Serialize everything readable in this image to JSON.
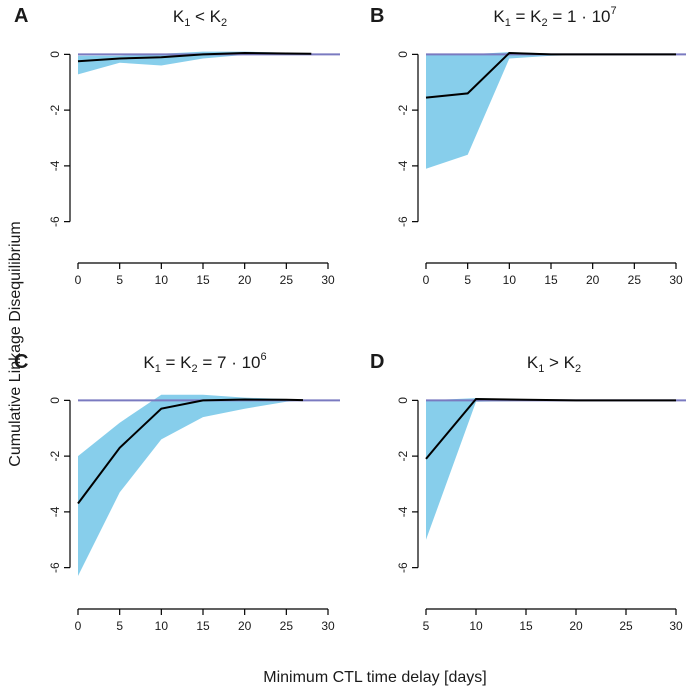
{
  "figure": {
    "ylabel": "Cumulative Linkage Disequilibrium",
    "xlabel": "Minimum CTL time delay [days]"
  },
  "colors": {
    "band": "#87ceeb",
    "zero_line": "#7a7ac0",
    "mean_line": "#000000"
  },
  "chart_data": [
    {
      "type": "area",
      "panel": "A",
      "title": {
        "pre": "K",
        "s1": "1",
        "mid": " < K",
        "s2": "2",
        "post": "",
        "sup": ""
      },
      "ylim": [
        -6.3,
        0.3
      ],
      "yticks": [
        0,
        -2,
        -4,
        -6
      ],
      "xlim": [
        0,
        30
      ],
      "xticks": [
        0,
        5,
        10,
        15,
        20,
        25,
        30
      ],
      "x": [
        0,
        5,
        10,
        15,
        20,
        25,
        28
      ],
      "mean": [
        -0.25,
        -0.15,
        -0.1,
        0.0,
        0.05,
        0.03,
        0.02
      ],
      "lower": [
        -0.72,
        -0.3,
        -0.4,
        -0.15,
        -0.02,
        -0.01,
        0.0
      ],
      "upper": [
        -0.05,
        -0.05,
        0.02,
        0.1,
        0.1,
        0.06,
        0.03
      ]
    },
    {
      "type": "area",
      "panel": "B",
      "title": {
        "pre": "K",
        "s1": "1",
        "mid": " = K",
        "s2": "2",
        "post": " = 1 · 10",
        "sup": "7"
      },
      "ylim": [
        -6.3,
        0.3
      ],
      "yticks": [
        0,
        -2,
        -4,
        -6
      ],
      "xlim": [
        0,
        30
      ],
      "xticks": [
        0,
        5,
        10,
        15,
        20,
        25,
        30
      ],
      "x": [
        0,
        5,
        10,
        15,
        20,
        25,
        30
      ],
      "mean": [
        -1.55,
        -1.4,
        0.05,
        0.0,
        0.0,
        0.0,
        0.0
      ],
      "lower": [
        -4.1,
        -3.6,
        -0.15,
        -0.05,
        -0.02,
        -0.01,
        0.0
      ],
      "upper": [
        0.0,
        0.0,
        0.08,
        0.03,
        0.01,
        0.0,
        0.0
      ]
    },
    {
      "type": "area",
      "panel": "C",
      "title": {
        "pre": "K",
        "s1": "1",
        "mid": " = K",
        "s2": "2",
        "post": " = 7 · 10",
        "sup": "6"
      },
      "ylim": [
        -6.3,
        0.3
      ],
      "yticks": [
        0,
        -2,
        -4,
        -6
      ],
      "xlim": [
        0,
        30
      ],
      "xticks": [
        0,
        5,
        10,
        15,
        20,
        25,
        30
      ],
      "x": [
        0,
        5,
        10,
        15,
        20,
        25,
        27
      ],
      "mean": [
        -3.7,
        -1.7,
        -0.3,
        0.0,
        0.03,
        0.02,
        0.01
      ],
      "lower": [
        -6.3,
        -3.3,
        -1.4,
        -0.6,
        -0.3,
        -0.05,
        0.0
      ],
      "upper": [
        -2.0,
        -0.8,
        0.2,
        0.2,
        0.1,
        0.05,
        0.02
      ]
    },
    {
      "type": "area",
      "panel": "D",
      "title": {
        "pre": "K",
        "s1": "1",
        "mid": " > K",
        "s2": "2",
        "post": "",
        "sup": ""
      },
      "ylim": [
        -6.3,
        0.3
      ],
      "yticks": [
        0,
        -2,
        -4,
        -6
      ],
      "xlim": [
        5,
        30
      ],
      "xticks": [
        5,
        10,
        15,
        20,
        25,
        30
      ],
      "x": [
        5,
        10,
        15,
        20,
        25,
        30
      ],
      "mean": [
        -2.1,
        0.05,
        0.02,
        0.0,
        0.0,
        0.0
      ],
      "lower": [
        -5.0,
        -0.05,
        -0.02,
        0.0,
        0.0,
        0.0
      ],
      "upper": [
        0.0,
        0.08,
        0.04,
        0.01,
        0.0,
        0.0
      ]
    }
  ]
}
